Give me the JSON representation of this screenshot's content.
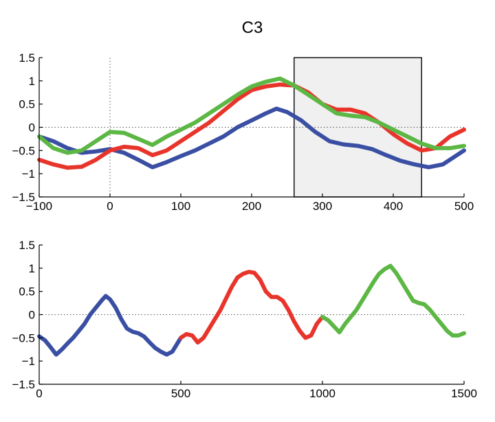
{
  "colors": {
    "blue": "#3a4fa3",
    "red": "#e8352c",
    "green": "#5cb744"
  },
  "chart_data": [
    {
      "type": "line",
      "title": "C3",
      "xlim": [
        -100,
        500
      ],
      "ylim": [
        -1.5,
        1.5
      ],
      "xticks": [
        "−100",
        "0",
        "100",
        "200",
        "300",
        "400",
        "500"
      ],
      "xtick_values": [
        -100,
        0,
        100,
        200,
        300,
        400,
        500
      ],
      "yticks": [
        "1.5",
        "1",
        "0.5",
        "0",
        "−0.5",
        "−1",
        "−1.5"
      ],
      "ytick_values": [
        1.5,
        1,
        0.5,
        0,
        -0.5,
        -1,
        -1.5
      ],
      "reference_lines": {
        "y": 0,
        "x": 0
      },
      "highlight_region": [
        260,
        440
      ],
      "series": [
        {
          "color": "blue",
          "x": [
            -100,
            -80,
            -60,
            -40,
            -20,
            0,
            20,
            40,
            60,
            80,
            100,
            120,
            140,
            160,
            180,
            200,
            220,
            235,
            250,
            270,
            290,
            310,
            330,
            350,
            370,
            390,
            410,
            430,
            450,
            470,
            500
          ],
          "y": [
            -0.2,
            -0.3,
            -0.45,
            -0.55,
            -0.52,
            -0.47,
            -0.55,
            -0.7,
            -0.86,
            -0.75,
            -0.62,
            -0.5,
            -0.35,
            -0.2,
            0.0,
            0.15,
            0.3,
            0.4,
            0.33,
            0.15,
            -0.1,
            -0.3,
            -0.37,
            -0.4,
            -0.47,
            -0.6,
            -0.72,
            -0.8,
            -0.86,
            -0.8,
            -0.5
          ]
        },
        {
          "color": "red",
          "x": [
            -100,
            -80,
            -60,
            -40,
            -20,
            0,
            20,
            40,
            60,
            80,
            100,
            120,
            140,
            160,
            180,
            200,
            220,
            240,
            260,
            280,
            300,
            320,
            340,
            360,
            380,
            400,
            420,
            440,
            460,
            480,
            500
          ],
          "y": [
            -0.7,
            -0.8,
            -0.87,
            -0.85,
            -0.7,
            -0.5,
            -0.42,
            -0.45,
            -0.6,
            -0.5,
            -0.3,
            -0.1,
            0.1,
            0.35,
            0.6,
            0.8,
            0.88,
            0.92,
            0.9,
            0.75,
            0.5,
            0.38,
            0.38,
            0.3,
            0.1,
            -0.15,
            -0.35,
            -0.5,
            -0.45,
            -0.2,
            -0.05
          ]
        },
        {
          "color": "green",
          "x": [
            -100,
            -80,
            -60,
            -40,
            -20,
            0,
            20,
            40,
            60,
            80,
            100,
            120,
            140,
            160,
            180,
            200,
            220,
            240,
            260,
            280,
            300,
            320,
            340,
            360,
            380,
            400,
            420,
            440,
            460,
            480,
            500
          ],
          "y": [
            -0.2,
            -0.45,
            -0.55,
            -0.5,
            -0.3,
            -0.1,
            -0.12,
            -0.25,
            -0.38,
            -0.2,
            -0.05,
            0.1,
            0.3,
            0.5,
            0.7,
            0.88,
            0.98,
            1.05,
            0.9,
            0.7,
            0.5,
            0.3,
            0.25,
            0.22,
            0.1,
            -0.05,
            -0.2,
            -0.35,
            -0.45,
            -0.45,
            -0.4
          ]
        }
      ]
    },
    {
      "type": "line",
      "xlim": [
        0,
        1500
      ],
      "ylim": [
        -1.5,
        1.5
      ],
      "xticks": [
        "0",
        "500",
        "1000",
        "1500"
      ],
      "xtick_values": [
        0,
        500,
        1000,
        1500
      ],
      "yticks": [
        "1.5",
        "1",
        "0.5",
        "0",
        "−0.5",
        "−1",
        "−1.5"
      ],
      "ytick_values": [
        1.5,
        1,
        0.5,
        0,
        -0.5,
        -1,
        -1.5
      ],
      "reference_lines": {
        "y": 0
      },
      "series": [
        {
          "color": "blue",
          "x": [
            0,
            20,
            40,
            60,
            80,
            100,
            120,
            140,
            160,
            180,
            200,
            220,
            235,
            250,
            270,
            290,
            310,
            330,
            350,
            370,
            390,
            410,
            430,
            450,
            470,
            500
          ],
          "y": [
            -0.47,
            -0.55,
            -0.7,
            -0.86,
            -0.75,
            -0.62,
            -0.5,
            -0.35,
            -0.2,
            0.0,
            0.15,
            0.3,
            0.4,
            0.33,
            0.15,
            -0.1,
            -0.3,
            -0.37,
            -0.4,
            -0.47,
            -0.6,
            -0.72,
            -0.8,
            -0.86,
            -0.8,
            -0.5
          ]
        },
        {
          "color": "red",
          "x": [
            500,
            520,
            540,
            560,
            580,
            600,
            620,
            640,
            660,
            680,
            700,
            720,
            740,
            760,
            780,
            800,
            820,
            840,
            860,
            880,
            900,
            920,
            940,
            960,
            980,
            1000
          ],
          "y": [
            -0.5,
            -0.42,
            -0.45,
            -0.6,
            -0.5,
            -0.3,
            -0.1,
            0.1,
            0.35,
            0.6,
            0.8,
            0.88,
            0.92,
            0.9,
            0.75,
            0.5,
            0.38,
            0.38,
            0.3,
            0.1,
            -0.15,
            -0.35,
            -0.5,
            -0.45,
            -0.2,
            -0.05
          ]
        },
        {
          "color": "green",
          "x": [
            1000,
            1020,
            1040,
            1060,
            1080,
            1100,
            1120,
            1140,
            1160,
            1180,
            1200,
            1220,
            1240,
            1260,
            1280,
            1300,
            1320,
            1340,
            1360,
            1380,
            1400,
            1420,
            1440,
            1460,
            1480,
            1500
          ],
          "y": [
            -0.05,
            -0.12,
            -0.25,
            -0.38,
            -0.2,
            -0.05,
            0.1,
            0.3,
            0.5,
            0.7,
            0.88,
            0.98,
            1.05,
            0.9,
            0.7,
            0.5,
            0.3,
            0.25,
            0.22,
            0.1,
            -0.05,
            -0.2,
            -0.35,
            -0.45,
            -0.45,
            -0.4
          ]
        }
      ]
    }
  ]
}
